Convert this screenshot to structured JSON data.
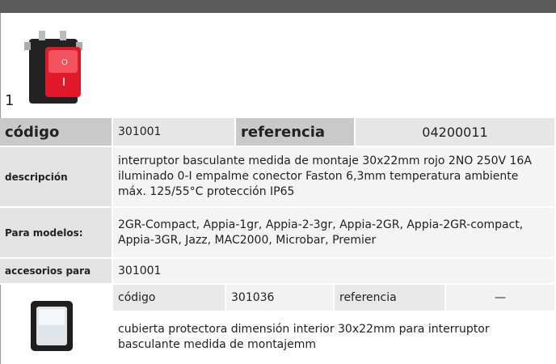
{
  "product": {
    "number": "1",
    "codigo_label": "código",
    "codigo": "301001",
    "referencia_label": "referencia",
    "referencia": "04200011",
    "descripcion_label": "descripción",
    "descripcion": "interruptor basculante  medida de montaje 30x22mm rojo 2NO 250V 16A iluminado 0-I empalme conector Faston 6,3mm temperatura ambiente máx. 125/55°C protección IP65",
    "modelos_label": "Para modelos:",
    "modelos": "2GR-Compact, Appia-1gr, Appia-2-3gr, Appia-2GR, Appia-2GR-compact, Appia-3GR, Jazz, MAC2000, Microbar, Premier",
    "accesorios_label": "accesorios para",
    "accesorios": "301001"
  },
  "accessory": {
    "codigo_label": "código",
    "codigo": "301036",
    "referencia_label": "referencia",
    "referencia": "—",
    "descripcion": "cubierta protectora  dimensión interior 30x22mm para interruptor basculante medida de montajemm"
  }
}
